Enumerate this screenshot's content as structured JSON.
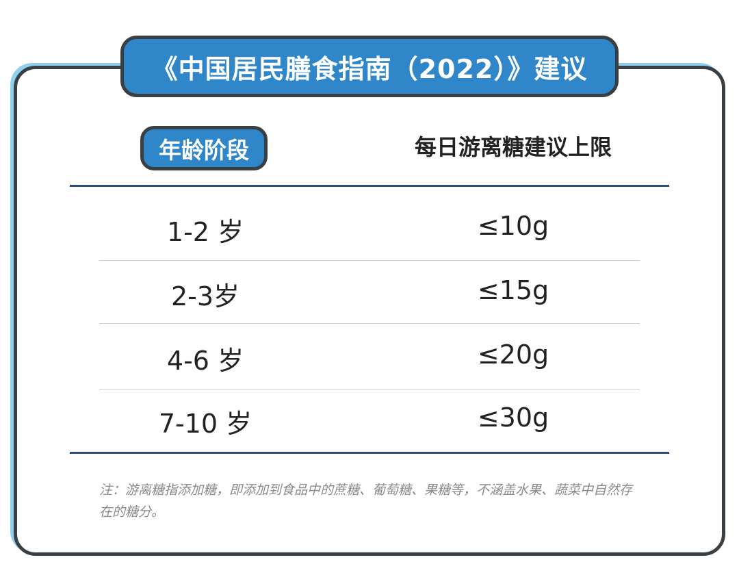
{
  "title": "《中国居民膳食指南（2022）》建议",
  "table": {
    "headers": [
      "年龄阶段",
      "每日游离糖建议上限"
    ],
    "rows": [
      {
        "age": "1-2 岁",
        "limit": "≤10g"
      },
      {
        "age": "2-3岁",
        "limit": "≤15g"
      },
      {
        "age": "4-6 岁",
        "limit": "≤20g"
      },
      {
        "age": "7-10 岁",
        "limit": "≤30g"
      }
    ]
  },
  "note": "注：游离糖指添加糖，即添加到食品中的蔗糖、葡萄糖、果糖等，不涵盖水果、蔬菜中自然存在的糖分。",
  "colors": {
    "accent": "#2f86c8",
    "border": "#3a3f44",
    "rule": "#2c4a7c",
    "shadow": "#8fd0ef"
  }
}
